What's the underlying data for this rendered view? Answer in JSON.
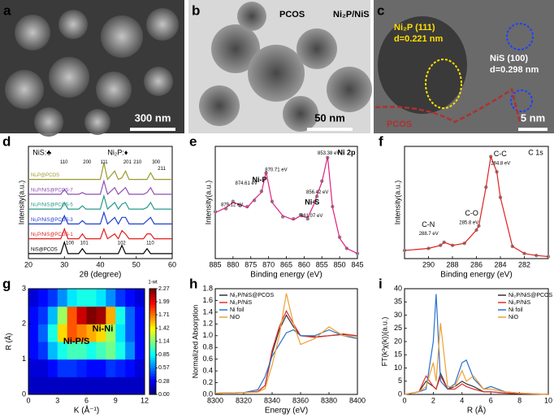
{
  "images": [
    {
      "panel": "a",
      "scale": "300 nm"
    },
    {
      "panel": "b",
      "scale": "50 nm",
      "labels": [
        "PCOS",
        "Ni₂P/NiS"
      ]
    },
    {
      "panel": "c",
      "scale": "5 nm",
      "labels": [
        "Ni₂P  (111)",
        "d=0.221 nm",
        "NiS  (100)",
        "d=0.298 nm",
        "PCOS"
      ]
    }
  ],
  "chart_data": [
    {
      "type": "line",
      "panel": "d",
      "xlabel": "2θ (degree)",
      "ylabel": "Intensity(a.u.)",
      "xlim": [
        20,
        60
      ],
      "xticks": [
        20,
        30,
        40,
        50,
        60
      ],
      "ylim": [
        -0.2,
        6.6
      ],
      "legend": "inline",
      "annotations": [
        "NiS:♣",
        "Ni₂P:♦",
        "110",
        "200",
        "111",
        "201",
        "210",
        "300",
        "211",
        "100",
        "101",
        "102",
        "110"
      ],
      "x": [
        20,
        25,
        29,
        30,
        31,
        34,
        35,
        36,
        40,
        41,
        42,
        44,
        45,
        46,
        47,
        48,
        52,
        53,
        54,
        55,
        60
      ],
      "series": [
        {
          "name": "Ni₂P@PCOS",
          "color": "#9a9a30",
          "values": [
            4.6,
            4.6,
            4.6,
            4.6,
            4.6,
            4.6,
            4.6,
            4.6,
            4.6,
            5.6,
            4.6,
            5.1,
            4.6,
            4.7,
            5.1,
            4.6,
            4.6,
            4.6,
            5.0,
            4.6,
            4.6
          ]
        },
        {
          "name": "Ni₂P/NiS@PCOS-7",
          "color": "#8a50b0",
          "values": [
            3.7,
            3.7,
            3.7,
            4.0,
            3.7,
            3.7,
            3.8,
            3.7,
            3.7,
            4.5,
            3.7,
            4.1,
            3.7,
            3.9,
            4.1,
            3.7,
            3.7,
            3.8,
            4.1,
            3.7,
            3.7
          ]
        },
        {
          "name": "Ni₂P/NiS@PCOS-5",
          "color": "#2a9a8a",
          "values": [
            2.8,
            2.8,
            2.8,
            3.2,
            2.8,
            2.8,
            3.0,
            2.8,
            2.8,
            3.6,
            2.8,
            3.2,
            2.8,
            3.1,
            3.2,
            2.8,
            2.8,
            2.9,
            3.2,
            2.8,
            2.8
          ]
        },
        {
          "name": "Ni₂P/NiS@PCOS-3",
          "color": "#2040d0",
          "values": [
            1.9,
            1.9,
            1.9,
            2.4,
            1.9,
            1.9,
            2.1,
            1.9,
            1.9,
            2.6,
            1.9,
            2.3,
            1.9,
            2.3,
            2.3,
            1.9,
            1.9,
            2.1,
            2.3,
            1.9,
            1.9
          ]
        },
        {
          "name": "Ni₂P/NiS@PCOS-1",
          "color": "#e02020",
          "values": [
            1,
            1,
            1,
            1.6,
            1,
            1,
            1.3,
            1,
            1,
            1.6,
            1,
            1.3,
            1,
            1.5,
            1.3,
            1,
            1,
            1.3,
            1.3,
            1,
            1
          ]
        },
        {
          "name": "NiS@PCOS",
          "color": "#000000",
          "values": [
            0.1,
            0.1,
            0.1,
            0.8,
            0.1,
            0.1,
            0.4,
            0.1,
            0.1,
            0.1,
            0.1,
            0.1,
            0.1,
            0.6,
            0.1,
            0.1,
            0.1,
            0.4,
            0.1,
            0.1,
            0.1
          ]
        }
      ]
    },
    {
      "type": "line",
      "panel": "e",
      "xlabel": "Binding energy (eV)",
      "ylabel": "Intensity(a.u.)",
      "xlim": [
        885,
        845
      ],
      "xticks": [
        885,
        880,
        875,
        870,
        865,
        860,
        855,
        850,
        845
      ],
      "ylim": [
        0,
        1.1
      ],
      "annotations": [
        "Ni 2p",
        "Ni-P",
        "Ni-S",
        "879.12 eV",
        "874.61 eV",
        "870.71 eV",
        "861.07 eV",
        "856.42 eV",
        "853.38 eV"
      ],
      "x": [
        885,
        882,
        880,
        878,
        876,
        874,
        872,
        870.7,
        869,
        866,
        863,
        861,
        859,
        857,
        856.4,
        855,
        853.4,
        852,
        850,
        848,
        845
      ],
      "series": [
        {
          "color": "#888888",
          "marker": true,
          "values": [
            0.46,
            0.49,
            0.56,
            0.52,
            0.51,
            0.57,
            0.66,
            0.84,
            0.56,
            0.41,
            0.39,
            0.43,
            0.39,
            0.56,
            0.61,
            0.76,
            0.99,
            0.51,
            0.21,
            0.1,
            0.05
          ]
        },
        {
          "color": "#e0207f",
          "values": [
            0.45,
            0.5,
            0.55,
            0.53,
            0.5,
            0.58,
            0.65,
            0.85,
            0.55,
            0.42,
            0.38,
            0.42,
            0.4,
            0.55,
            0.62,
            0.75,
            1.0,
            0.5,
            0.2,
            0.1,
            0.05
          ]
        }
      ]
    },
    {
      "type": "line",
      "panel": "f",
      "xlabel": "Binding energy (eV)",
      "ylabel": "Intensity(a.u.)",
      "xlim": [
        292,
        280
      ],
      "xticks": [
        290,
        288,
        286,
        284,
        282
      ],
      "ylim": [
        0,
        1.1
      ],
      "annotations": [
        "C 1s",
        "C-C",
        "284.8 eV",
        "C-O",
        "285.8 eV",
        "C-N",
        "288.7 eV"
      ],
      "x": [
        292,
        290,
        289,
        288.7,
        288,
        287,
        286,
        285.8,
        285.2,
        284.8,
        284.3,
        284,
        283,
        282,
        281,
        280
      ],
      "series": [
        {
          "color": "#888888",
          "marker": true,
          "values": [
            0.08,
            0.1,
            0.13,
            0.16,
            0.13,
            0.15,
            0.28,
            0.32,
            0.7,
            1.0,
            0.85,
            0.6,
            0.12,
            0.05,
            0.03,
            0.02
          ]
        },
        {
          "color": "#e02020",
          "values": [
            0.08,
            0.1,
            0.13,
            0.16,
            0.13,
            0.15,
            0.28,
            0.32,
            0.7,
            1.0,
            0.85,
            0.6,
            0.12,
            0.05,
            0.03,
            0.02
          ]
        }
      ]
    },
    {
      "type": "heatmap",
      "panel": "g",
      "xlabel": "K (Å⁻¹)",
      "ylabel": "R (Å)",
      "xlim": [
        0,
        12
      ],
      "xticks": [
        0,
        3,
        6,
        9,
        12
      ],
      "ylim": [
        0,
        3
      ],
      "yticks": [
        0,
        1,
        2,
        3
      ],
      "annotations": [
        "Ni-Ni",
        "Ni-P/S"
      ],
      "colorbar_title": "1-wt",
      "zlim": [
        0,
        2.27
      ],
      "zticks": [
        {
          "value": 0,
          "label": "0.00"
        },
        0.28,
        0.57,
        0.85,
        1.14,
        1.42,
        1.71,
        1.99,
        2.27
      ],
      "z": [
        [
          0.15,
          0.15,
          0.15,
          0.15,
          0.15,
          0.15,
          0.15,
          0.15,
          0.15,
          0.15,
          0.15,
          0.15
        ],
        [
          0.2,
          0.2,
          0.3,
          0.4,
          0.4,
          0.35,
          0.3,
          0.3,
          0.4,
          0.35,
          0.3,
          0.2
        ],
        [
          0.3,
          0.4,
          0.7,
          0.9,
          1.0,
          1.0,
          0.9,
          1.0,
          1.1,
          0.9,
          0.6,
          0.3
        ],
        [
          0.3,
          0.5,
          0.9,
          1.5,
          1.8,
          1.7,
          1.6,
          1.5,
          1.2,
          0.8,
          0.5,
          0.3
        ],
        [
          0.3,
          0.4,
          0.7,
          1.2,
          1.8,
          2.1,
          2.27,
          2.2,
          1.6,
          0.9,
          0.5,
          0.3
        ],
        [
          0.2,
          0.3,
          0.4,
          0.6,
          0.8,
          0.9,
          0.9,
          0.8,
          0.6,
          0.4,
          0.3,
          0.2
        ]
      ]
    },
    {
      "type": "line",
      "panel": "h",
      "xlabel": "Energy (eV)",
      "ylabel": "Normalized Absorption",
      "xlim": [
        8300,
        8400
      ],
      "xticks": [
        8300,
        8320,
        8340,
        8360,
        8380,
        8400
      ],
      "ylim": [
        0,
        1.8
      ],
      "yticks": [
        {
          "value": 0,
          "label": "0.0"
        },
        0.2,
        0.4,
        0.6,
        0.8,
        {
          "value": 1,
          "label": "1.0"
        },
        1.2,
        1.4,
        1.6,
        1.8
      ],
      "legend": "upper left",
      "x": [
        8300,
        8320,
        8330,
        8335,
        8340,
        8345,
        8350,
        8355,
        8360,
        8370,
        8380,
        8390,
        8400
      ],
      "series": [
        {
          "name": "Ni₂P/NiS@PCOS",
          "color": "#333333",
          "values": [
            0.02,
            0.03,
            0.05,
            0.15,
            0.7,
            1.1,
            1.35,
            1.15,
            1.0,
            0.98,
            1.0,
            1.02,
            1.0
          ]
        },
        {
          "name": "Ni₂P/NiS",
          "color": "#e03030",
          "values": [
            0.02,
            0.03,
            0.05,
            0.15,
            0.75,
            1.15,
            1.42,
            1.2,
            1.0,
            0.97,
            1.0,
            1.03,
            1.0
          ]
        },
        {
          "name": "Ni foil",
          "color": "#2a6fd0",
          "values": [
            0.02,
            0.03,
            0.08,
            0.3,
            0.65,
            0.85,
            1.05,
            1.1,
            1.0,
            1.0,
            1.1,
            1.0,
            0.95
          ]
        },
        {
          "name": "NiO",
          "color": "#f0a030",
          "values": [
            0.02,
            0.03,
            0.04,
            0.1,
            0.5,
            1.0,
            1.72,
            1.2,
            0.85,
            0.95,
            1.15,
            1.0,
            0.98
          ]
        }
      ]
    },
    {
      "type": "line",
      "panel": "i",
      "xlabel": "R (Å)",
      "ylabel": "FT(k³χ(k))(a.u.)",
      "xlim": [
        0,
        10
      ],
      "xticks": [
        0,
        2,
        4,
        6,
        8,
        10
      ],
      "ylim": [
        0,
        40
      ],
      "yticks": [
        0,
        5,
        10,
        15,
        20,
        25,
        30,
        35,
        40
      ],
      "legend": "upper right",
      "x": [
        0,
        1,
        1.5,
        2,
        2.2,
        2.5,
        3,
        3.5,
        4,
        4.3,
        4.8,
        5.5,
        6,
        7,
        8,
        10
      ],
      "series": [
        {
          "name": "Ni₂P/NiS@PCOS",
          "color": "#333333",
          "values": [
            0,
            1,
            5,
            3,
            2,
            8,
            2,
            3,
            5,
            4,
            3,
            1,
            1,
            0.5,
            0.3,
            0
          ]
        },
        {
          "name": "Ni₂P/NiS",
          "color": "#e03030",
          "values": [
            0,
            1,
            7,
            3,
            2,
            7,
            2,
            2,
            4,
            3,
            2,
            1,
            1,
            0.5,
            0.3,
            0
          ]
        },
        {
          "name": "Ni foil",
          "color": "#2a6fd0",
          "values": [
            0,
            1,
            2,
            20,
            38,
            5,
            2,
            4,
            12,
            13,
            6,
            2,
            3,
            1,
            0.5,
            0
          ]
        },
        {
          "name": "NiO",
          "color": "#f0a030",
          "values": [
            0,
            1,
            3,
            12,
            5,
            27,
            3,
            3,
            9,
            5,
            7,
            2,
            2,
            1,
            0.5,
            0
          ]
        }
      ]
    }
  ]
}
